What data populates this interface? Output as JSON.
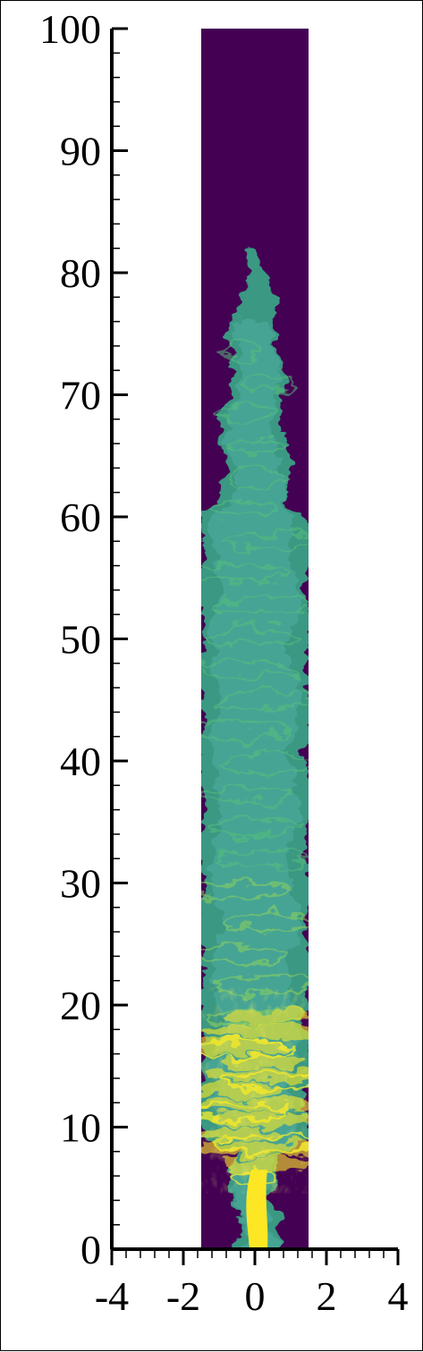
{
  "plot": {
    "x_axis": {
      "range": [
        -4,
        4
      ],
      "major_ticks": [
        -4,
        -2,
        0,
        2,
        4
      ],
      "tick_labels": [
        "-4",
        "-2",
        "0",
        "2",
        "4"
      ],
      "minor_step": 0.4
    },
    "y_axis": {
      "range": [
        0,
        100
      ],
      "major_ticks": [
        0,
        10,
        20,
        30,
        40,
        50,
        60,
        70,
        80,
        90,
        100
      ],
      "tick_labels": [
        "0",
        "10",
        "20",
        "30",
        "40",
        "50",
        "60",
        "70",
        "80",
        "90",
        "100"
      ],
      "minor_step": 2
    },
    "domain": {
      "x_range": [
        -1.5,
        1.5
      ],
      "y_range": [
        0,
        100
      ],
      "background_color": "#440154"
    },
    "colormap": [
      "#440154",
      "#3b528b",
      "#21918c",
      "#5ec962",
      "#fde725"
    ],
    "plume": {
      "top_y": 82,
      "jet_color": "#fde725",
      "mixed_color": "#3ab38a",
      "core_color": "#4aa99c"
    }
  }
}
